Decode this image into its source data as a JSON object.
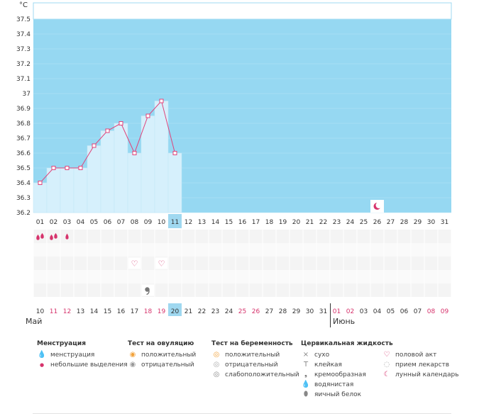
{
  "chart_data": {
    "type": "bar",
    "unit_label": "°C",
    "y_ticks": [
      "37.5",
      "37.4",
      "37.3",
      "37.2",
      "37.1",
      "37",
      "36.9",
      "36.8",
      "36.7",
      "36.6",
      "36.5",
      "36.4",
      "36.3",
      "36.2"
    ],
    "ylim": [
      36.2,
      37.5
    ],
    "cycle_days": [
      "01",
      "02",
      "03",
      "04",
      "05",
      "06",
      "07",
      "08",
      "09",
      "10",
      "11",
      "12",
      "13",
      "14",
      "15",
      "16",
      "17",
      "18",
      "19",
      "20",
      "21",
      "22",
      "23",
      "24",
      "25",
      "26",
      "27",
      "28",
      "29",
      "30",
      "31"
    ],
    "temperatures": [
      36.4,
      36.5,
      36.5,
      36.5,
      36.65,
      36.75,
      36.8,
      36.6,
      36.85,
      36.95,
      36.6
    ],
    "highlighted_cycle_day": "11",
    "moon_cycle_day": "26",
    "calendar_dates": [
      "10",
      "11",
      "12",
      "13",
      "14",
      "15",
      "16",
      "17",
      "18",
      "19",
      "20",
      "21",
      "22",
      "23",
      "24",
      "25",
      "26",
      "27",
      "28",
      "29",
      "30",
      "31",
      "01",
      "02",
      "03",
      "04",
      "05",
      "06",
      "07",
      "08",
      "09"
    ],
    "red_dates": [
      "11",
      "12",
      "18",
      "19",
      "25",
      "26",
      "01",
      "02",
      "08",
      "09"
    ],
    "today_date": "20",
    "months": [
      {
        "label": "Май"
      },
      {
        "label": "Июнь"
      }
    ],
    "markers": [
      {
        "day": "01",
        "row": 0,
        "icon": "menstruation-icon"
      },
      {
        "day": "02",
        "row": 0,
        "icon": "menstruation-icon"
      },
      {
        "day": "03",
        "row": 0,
        "icon": "spotting-icon"
      },
      {
        "day": "08",
        "row": 2,
        "icon": "heart-icon"
      },
      {
        "day": "10",
        "row": 2,
        "icon": "heart-icon"
      },
      {
        "day": "09",
        "row": 4,
        "icon": "creamy-icon"
      }
    ],
    "colors": {
      "background": "#96d8f2",
      "bar": "#d6f0fc",
      "line": "#e0437a",
      "accent": "#d6336c",
      "highlight": "#9fd8f0"
    }
  },
  "legend": {
    "menstruation": {
      "title": "Менструация",
      "items": [
        "менструация",
        "небольшие выделения"
      ]
    },
    "ovulation": {
      "title": "Тест на овуляцию",
      "items": [
        "положительный",
        "отрицательный"
      ]
    },
    "pregnancy": {
      "title": "Тест на беременность",
      "items": [
        "положительный",
        "отрицательный",
        "слабоположительный"
      ]
    },
    "cervical": {
      "title": "Цервикальная жидкость",
      "items": [
        "сухо",
        "клейкая",
        "кремообразная",
        "водянистая",
        "яичный белок"
      ]
    },
    "other": {
      "items": [
        "половой акт",
        "прием лекарств",
        "лунный календарь"
      ]
    }
  }
}
